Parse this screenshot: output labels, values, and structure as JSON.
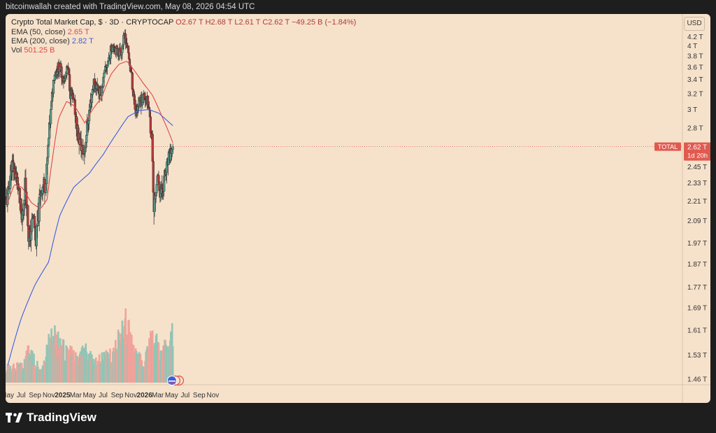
{
  "header": {
    "credit": "bitcoinwallah created with TradingView.com, May 08, 2026 04:54 UTC"
  },
  "legend": {
    "line1_title": "Crypto Total Market Cap, $ · 3D · CRYPTOCAP",
    "line1_ohlc": "O2.67 T  H2.68 T  L2.61 T  C2.62 T  −49.25 B (−1.84%)",
    "ema50_label": "EMA (50, close)",
    "ema50_value": "2.65 T",
    "ema200_label": "EMA (200, close)",
    "ema200_value": "2.82 T",
    "vol_label": "Vol",
    "vol_value": "501.25 B"
  },
  "currency": "USD",
  "price_tag": {
    "symbol": "TOTAL",
    "price": "2.62 T",
    "countdown": "1d 20h"
  },
  "footer": {
    "brand": "TradingView"
  },
  "colors": {
    "up": "#5d9e8c",
    "down": "#b23b3b",
    "ema50": "#e04848",
    "ema200": "#3a5fe0",
    "vol_up": "#93c4b5",
    "vol_down": "#f0a39a",
    "background": "#f6e2cb"
  },
  "chart_data": {
    "type": "candlestick",
    "title": "Crypto Total Market Cap, $ · 3D · CRYPTOCAP",
    "y_ticks": [
      "4.2 T",
      "4 T",
      "3.8 T",
      "3.6 T",
      "3.4 T",
      "3.2 T",
      "3 T",
      "2.8 T",
      "2.62 T",
      "2.45 T",
      "2.33 T",
      "2.21 T",
      "2.09 T",
      "1.97 T",
      "1.87 T",
      "1.77 T",
      "1.69 T",
      "1.61 T",
      "1.53 T",
      "1.46 T"
    ],
    "x_ticks": [
      {
        "label": "May",
        "bold": false
      },
      {
        "label": "Jul",
        "bold": false
      },
      {
        "label": "Sep",
        "bold": false
      },
      {
        "label": "Nov",
        "bold": false
      },
      {
        "label": "2025",
        "bold": true
      },
      {
        "label": "Mar",
        "bold": false
      },
      {
        "label": "May",
        "bold": false
      },
      {
        "label": "Jul",
        "bold": false
      },
      {
        "label": "Sep",
        "bold": false
      },
      {
        "label": "Nov",
        "bold": false
      },
      {
        "label": "2026",
        "bold": true
      },
      {
        "label": "Mar",
        "bold": false
      },
      {
        "label": "May",
        "bold": false
      },
      {
        "label": "Jul",
        "bold": false
      },
      {
        "label": "Sep",
        "bold": false
      },
      {
        "label": "Nov",
        "bold": false
      }
    ],
    "price_anchors": [
      [
        "2024-05-03",
        2.22
      ],
      [
        "2024-05-20",
        2.48
      ],
      [
        "2024-06-10",
        2.38
      ],
      [
        "2024-07-05",
        2.08
      ],
      [
        "2024-07-20",
        2.34
      ],
      [
        "2024-08-05",
        1.97
      ],
      [
        "2024-08-25",
        2.12
      ],
      [
        "2024-09-06",
        1.98
      ],
      [
        "2024-09-28",
        2.3
      ],
      [
        "2024-10-20",
        2.33
      ],
      [
        "2024-11-12",
        3.02
      ],
      [
        "2024-11-25",
        3.48
      ],
      [
        "2024-12-17",
        3.62
      ],
      [
        "2025-01-10",
        3.38
      ],
      [
        "2025-01-25",
        3.58
      ],
      [
        "2025-02-05",
        3.22
      ],
      [
        "2025-02-25",
        3.02
      ],
      [
        "2025-03-10",
        2.72
      ],
      [
        "2025-04-07",
        2.55
      ],
      [
        "2025-04-30",
        2.98
      ],
      [
        "2025-05-22",
        3.38
      ],
      [
        "2025-06-20",
        3.2
      ],
      [
        "2025-07-12",
        3.55
      ],
      [
        "2025-08-01",
        3.85
      ],
      [
        "2025-08-14",
        4.05
      ],
      [
        "2025-09-01",
        3.86
      ],
      [
        "2025-09-20",
        3.92
      ],
      [
        "2025-10-06",
        4.25
      ],
      [
        "2025-10-20",
        3.85
      ],
      [
        "2025-11-05",
        3.42
      ],
      [
        "2025-11-22",
        2.98
      ],
      [
        "2025-12-15",
        3.12
      ],
      [
        "2026-01-05",
        3.18
      ],
      [
        "2026-01-20",
        3.0
      ],
      [
        "2026-02-05",
        2.65
      ],
      [
        "2026-02-10",
        2.12
      ],
      [
        "2026-02-25",
        2.36
      ],
      [
        "2026-03-15",
        2.26
      ],
      [
        "2026-04-05",
        2.4
      ],
      [
        "2026-04-25",
        2.55
      ],
      [
        "2026-05-08",
        2.62
      ]
    ],
    "ema50_anchors": [
      [
        "2024-05-03",
        2.2
      ],
      [
        "2024-06-01",
        2.32
      ],
      [
        "2024-07-05",
        2.3
      ],
      [
        "2024-08-15",
        2.2
      ],
      [
        "2024-09-25",
        2.16
      ],
      [
        "2024-10-25",
        2.22
      ],
      [
        "2024-11-20",
        2.55
      ],
      [
        "2024-12-15",
        2.9
      ],
      [
        "2025-01-20",
        3.1
      ],
      [
        "2025-02-25",
        3.04
      ],
      [
        "2025-04-10",
        2.85
      ],
      [
        "2025-05-15",
        3.0
      ],
      [
        "2025-06-25",
        3.15
      ],
      [
        "2025-08-05",
        3.48
      ],
      [
        "2025-09-10",
        3.65
      ],
      [
        "2025-10-15",
        3.7
      ],
      [
        "2025-11-15",
        3.55
      ],
      [
        "2025-12-25",
        3.35
      ],
      [
        "2026-02-05",
        3.18
      ],
      [
        "2026-03-20",
        2.92
      ],
      [
        "2026-04-20",
        2.75
      ],
      [
        "2026-05-08",
        2.65
      ]
    ],
    "ema200_anchors": [
      [
        "2024-05-03",
        1.5
      ],
      [
        "2024-07-01",
        1.65
      ],
      [
        "2024-09-01",
        1.78
      ],
      [
        "2024-11-01",
        1.88
      ],
      [
        "2024-12-20",
        2.12
      ],
      [
        "2025-02-20",
        2.3
      ],
      [
        "2025-04-30",
        2.4
      ],
      [
        "2025-07-01",
        2.55
      ],
      [
        "2025-09-01",
        2.75
      ],
      [
        "2025-10-20",
        2.92
      ],
      [
        "2025-12-10",
        2.99
      ],
      [
        "2026-01-20",
        3.0
      ],
      [
        "2026-03-05",
        2.96
      ],
      [
        "2026-04-10",
        2.88
      ],
      [
        "2026-05-08",
        2.82
      ]
    ],
    "volume_anchors": [
      [
        "2024-05-03",
        0.25
      ],
      [
        "2024-07-15",
        0.3
      ],
      [
        "2024-08-05",
        0.55
      ],
      [
        "2024-10-01",
        0.2
      ],
      [
        "2024-11-15",
        0.8
      ],
      [
        "2024-12-10",
        0.7
      ],
      [
        "2025-01-20",
        0.5
      ],
      [
        "2025-03-05",
        0.45
      ],
      [
        "2025-04-07",
        0.6
      ],
      [
        "2025-05-20",
        0.35
      ],
      [
        "2025-07-20",
        0.45
      ],
      [
        "2025-08-20",
        0.5
      ],
      [
        "2025-10-10",
        1.0
      ],
      [
        "2025-11-10",
        0.55
      ],
      [
        "2026-01-01",
        0.3
      ],
      [
        "2026-02-06",
        0.85
      ],
      [
        "2026-03-15",
        0.4
      ],
      [
        "2026-05-07",
        0.9
      ]
    ]
  }
}
